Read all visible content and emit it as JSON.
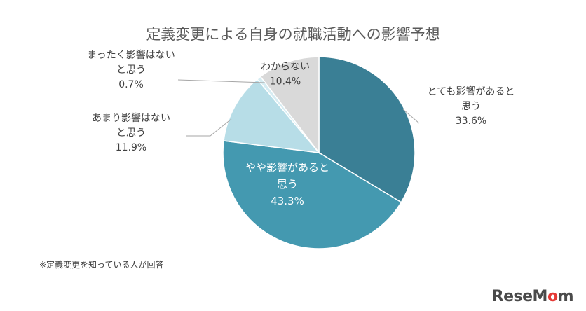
{
  "chart_data": {
    "type": "pie",
    "title": "定義変更による自身の就職活動への影響予想",
    "slices": [
      {
        "label_lines": [
          "とても影響があると",
          "思う"
        ],
        "value": 33.6,
        "value_text": "33.6%",
        "color": "#3a7f95"
      },
      {
        "label_lines": [
          "やや影響があると",
          "思う"
        ],
        "value": 43.3,
        "value_text": "43.3%",
        "color": "#4499b0"
      },
      {
        "label_lines": [
          "あまり影響はない",
          "と思う"
        ],
        "value": 11.9,
        "value_text": "11.9%",
        "color": "#b7dde7"
      },
      {
        "label_lines": [
          "まったく影響はない",
          "と思う"
        ],
        "value": 0.7,
        "value_text": "0.7%",
        "color": "#d6ecf2"
      },
      {
        "label_lines": [
          "わからない"
        ],
        "value": 10.4,
        "value_text": "10.4%",
        "color": "#d9d9d9"
      }
    ],
    "start_angle_deg": 0,
    "direction": "clockwise",
    "note": "※定義変更を知っている人が回答"
  },
  "logo": {
    "text_main": "ReseMom",
    "accent": "o"
  }
}
